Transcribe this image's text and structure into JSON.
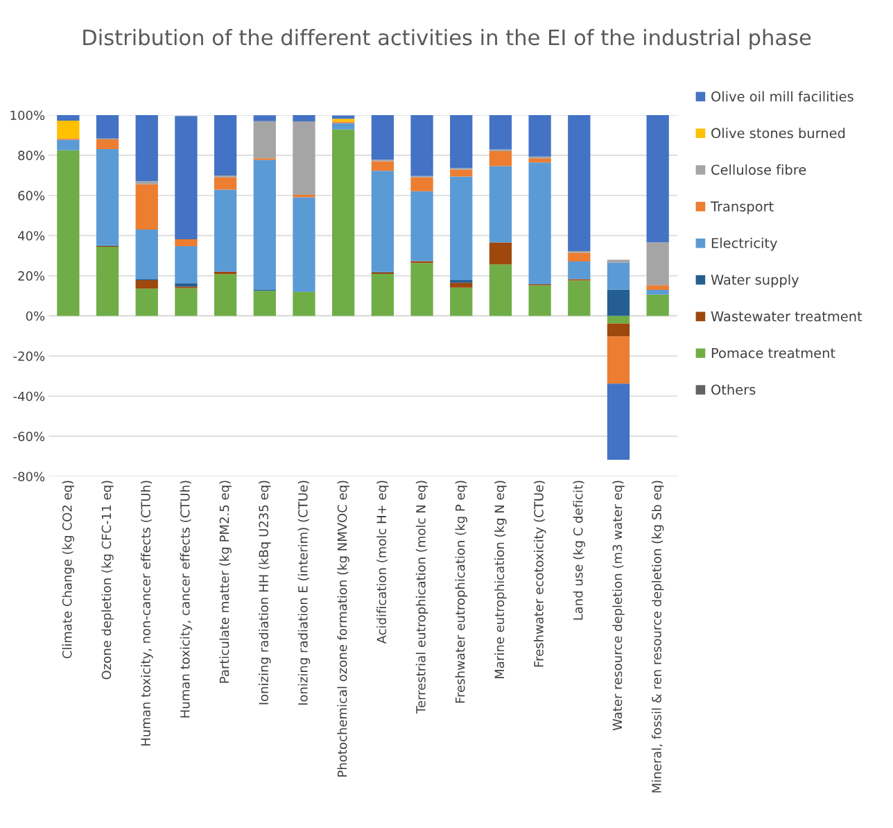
{
  "chart_data": {
    "type": "bar",
    "stacked": true,
    "title": "Distribution of the different activities in the EI of the industrial phase",
    "categories": [
      "Climate Change (kg CO2 eq)",
      "Ozone depletion (kg CFC-11 eq)",
      "Human toxicity, non-cancer effects (CTUh)",
      "Human toxicity, cancer effects (CTUh)",
      "Particulate matter (kg PM2.5 eq)",
      "Ionizing radiation HH (kBq U235 eq)",
      "Ionizing radiation E (interim) (CTUe)",
      "Photochemical ozone formation (kg NMVOC eq)",
      "Acidification (molc H+ eq)",
      "Terrestrial eutrophication (molc N eq)",
      "Freshwater eutrophication (kg P eq)",
      "Marine eutrophication (kg N eq)",
      "Freshwater ecotoxicity (CTUe)",
      "Land use (kg C deficit)",
      "Water resource depletion (m3 water eq)",
      "Mineral, fossil & ren resource depletion (kg Sb eq)"
    ],
    "series": [
      {
        "name": "Others",
        "color": "#636363",
        "values": [
          0,
          0,
          0,
          0,
          0,
          0,
          0,
          0,
          0,
          0,
          0,
          0,
          0,
          0,
          0,
          0
        ]
      },
      {
        "name": "Pomace treatment",
        "color": "#70ad47",
        "values": [
          82.5,
          34.4,
          13.5,
          13.8,
          20.8,
          12.5,
          11.9,
          92.8,
          20.9,
          26.3,
          14.1,
          25.6,
          15.2,
          17.6,
          -3.8,
          10.6
        ]
      },
      {
        "name": "Wastewater treatment",
        "color": "#9e480e",
        "values": [
          0,
          0.4,
          4.3,
          0.8,
          1.1,
          0,
          0,
          0,
          0.8,
          1.0,
          2.4,
          11.0,
          0.5,
          0.7,
          -6.5,
          0
        ]
      },
      {
        "name": "Water supply",
        "color": "#255e91",
        "values": [
          0,
          0.3,
          0.6,
          1.7,
          0.2,
          0.4,
          0.2,
          0,
          0.3,
          0,
          1.3,
          0,
          0,
          0,
          13.0,
          0
        ]
      },
      {
        "name": "Electricity",
        "color": "#5b9bd5",
        "values": [
          5.2,
          48.0,
          24.6,
          18.4,
          40.8,
          64.7,
          47.0,
          3.2,
          50.3,
          34.8,
          51.6,
          38.0,
          60.7,
          8.8,
          13.5,
          2.3
        ]
      },
      {
        "name": "Transport",
        "color": "#ed7d31",
        "values": [
          0.6,
          4.8,
          22.5,
          3.5,
          6.1,
          0.9,
          1.2,
          0.7,
          4.7,
          6.9,
          3.5,
          7.4,
          2.1,
          4.3,
          -23.5,
          2.4
        ]
      },
      {
        "name": "Cellulose fibre",
        "color": "#a5a5a5",
        "values": [
          null,
          0.4,
          1.6,
          null,
          0.9,
          18.5,
          36.6,
          null,
          0.8,
          0.7,
          0.7,
          0.9,
          0.9,
          0.9,
          1.5,
          21.3
        ]
      },
      {
        "name": "Olive stones burned",
        "color": "#ffc000",
        "values": [
          8.9,
          0,
          0,
          0,
          0,
          0,
          0,
          1.5,
          0,
          0,
          0,
          0,
          0,
          0,
          0,
          0
        ]
      },
      {
        "name": "Olive oil mill facilities",
        "color": "#4472c4",
        "values": [
          2.9,
          11.7,
          32.9,
          61.4,
          30.1,
          2.9,
          3.1,
          1.6,
          22.2,
          30.3,
          26.4,
          17.1,
          20.6,
          67.7,
          -37.9,
          63.4
        ]
      }
    ],
    "ylim": [
      -80,
      100
    ],
    "yticks": [
      {
        "value": -80,
        "label": "-80%"
      },
      {
        "value": -60,
        "label": "-60%"
      },
      {
        "value": -40,
        "label": "-40%"
      },
      {
        "value": -20,
        "label": "-20%"
      },
      {
        "value": 0,
        "label": "0%"
      },
      {
        "value": 20,
        "label": "20%"
      },
      {
        "value": 40,
        "label": "40%"
      },
      {
        "value": 60,
        "label": "60%"
      },
      {
        "value": 80,
        "label": "80%"
      },
      {
        "value": 100,
        "label": "100%"
      }
    ],
    "grid": "y",
    "legend": "right"
  }
}
